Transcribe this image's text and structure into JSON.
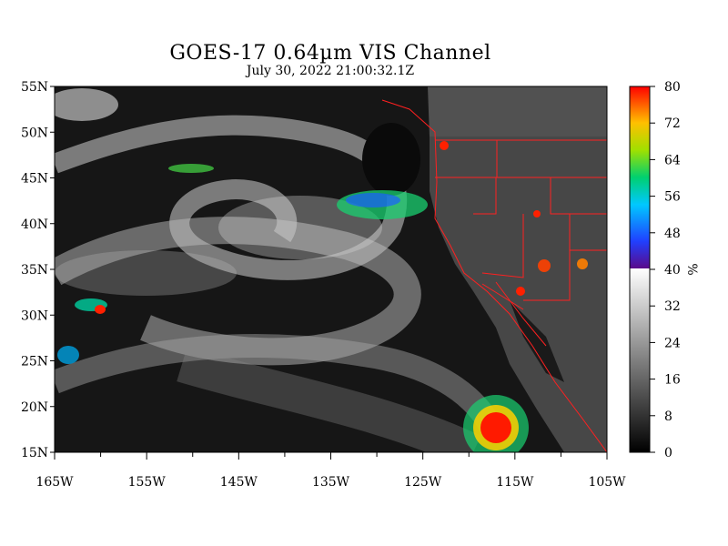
{
  "title": "GOES-17  0.64µm VIS Channel",
  "subtitle": "July 30,  2022 21:00:32.1Z",
  "map": {
    "lat_labels": [
      "55N",
      "50N",
      "45N",
      "40N",
      "35N",
      "30N",
      "25N",
      "20N",
      "15N"
    ],
    "lat_values": [
      55,
      50,
      45,
      40,
      35,
      30,
      25,
      20,
      15
    ],
    "lon_labels": [
      "165W",
      "155W",
      "145W",
      "135W",
      "125W",
      "115W",
      "105W"
    ],
    "lon_values": [
      -165,
      -155,
      -145,
      -135,
      -125,
      -115,
      -105
    ],
    "lat_range": [
      15,
      55
    ],
    "lon_range": [
      -165,
      -105
    ]
  },
  "colorbar": {
    "unit": "%",
    "tick_labels": [
      "80",
      "72",
      "64",
      "56",
      "48",
      "40",
      "32",
      "24",
      "16",
      "8",
      "0"
    ],
    "tick_values": [
      80,
      72,
      64,
      56,
      48,
      40,
      32,
      24,
      16,
      8,
      0
    ],
    "range": [
      0,
      80
    ]
  },
  "colors": {
    "ocean": "#121212",
    "cloud": "#c8c8c8",
    "boundary": "#ff2020",
    "high_reflect": "#ff1a00"
  }
}
